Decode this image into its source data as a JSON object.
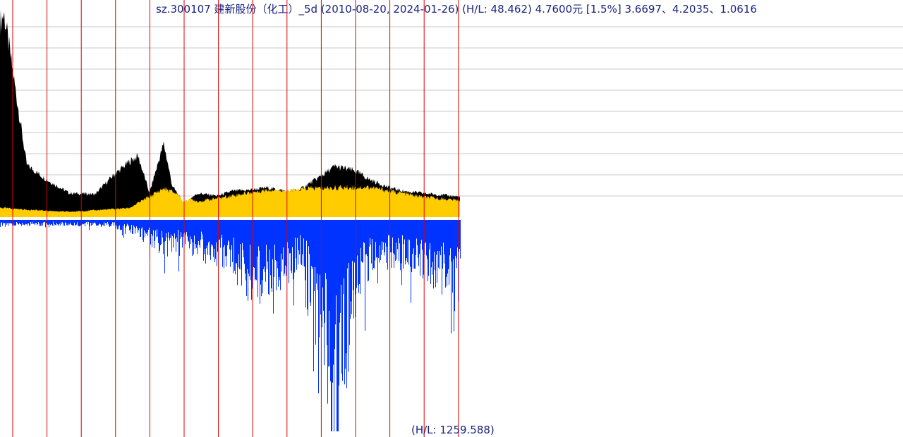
{
  "header": {
    "title": "sz.300107 建新股份（化工）_5d (2010-08-20, 2024-01-26) (H/L: 48.462) 4.7600元 [1.5%]  3.6697、4.2035、1.0616"
  },
  "footer": {
    "volume_label": "(H/L: 1259.588)"
  },
  "colors": {
    "price_area": "#000000",
    "lower_area": "#ffcc00",
    "volume": "#0033ff",
    "year_lines": "#dd0000",
    "grid": "#c8c8c8",
    "text": "#1a237e"
  },
  "chart_data": {
    "type": "area",
    "title": "sz.300107 建新股份（化工）_5d",
    "date_range": [
      "2010-08-20",
      "2024-01-26"
    ],
    "price_high_low_ratio": 48.462,
    "last_price": 4.76,
    "last_change_pct": 1.5,
    "volume_high_low_ratio": 1259.588,
    "year_marker_count": 14,
    "grid": true,
    "series": [
      {
        "name": "price",
        "x": [
          "2010-08",
          "2010-10",
          "2011-01",
          "2011-06",
          "2012-01",
          "2012-09",
          "2013-06",
          "2013-12",
          "2014-06",
          "2014-09",
          "2015-01",
          "2015-06",
          "2015-09",
          "2016-01",
          "2016-06",
          "2017-01",
          "2017-06",
          "2018-01",
          "2018-06",
          "2019-01",
          "2019-06",
          "2020-01",
          "2020-06",
          "2021-01",
          "2021-06",
          "2022-01",
          "2022-06",
          "2023-01",
          "2023-06",
          "2024-01"
        ],
        "y": [
          44,
          47,
          34,
          12,
          8.6,
          5.5,
          5.3,
          9.4,
          12.8,
          14.1,
          5.6,
          17.0,
          7.2,
          3.3,
          5.5,
          4.9,
          6.0,
          6.3,
          6.8,
          6.0,
          6.5,
          9.4,
          11.7,
          10.7,
          8.7,
          6.8,
          6.0,
          5.5,
          5.2,
          4.76
        ]
      },
      {
        "name": "lower_band",
        "x": [
          "2010-08",
          "2011-06",
          "2012-09",
          "2014-06",
          "2015-06",
          "2016-06",
          "2018-06",
          "2020-01",
          "2021-06",
          "2023-01",
          "2024-01"
        ],
        "y": [
          2.2,
          1.7,
          1.2,
          2.1,
          6.6,
          3.6,
          6.3,
          6.7,
          6.9,
          4.6,
          3.9
        ]
      },
      {
        "name": "volume",
        "x": [
          "2010-08",
          "2011-06",
          "2012-09",
          "2013-12",
          "2014-09",
          "2015-06",
          "2016-01",
          "2016-06",
          "2017-06",
          "2018-01",
          "2018-09",
          "2019-06",
          "2020-01",
          "2020-06",
          "2021-01",
          "2021-06",
          "2022-01",
          "2022-06",
          "2023-01",
          "2023-06",
          "2024-01"
        ],
        "y": [
          35,
          30,
          30,
          35,
          80,
          180,
          150,
          190,
          280,
          420,
          360,
          250,
          600,
          1259.588,
          470,
          310,
          230,
          250,
          290,
          350,
          460
        ]
      }
    ]
  }
}
